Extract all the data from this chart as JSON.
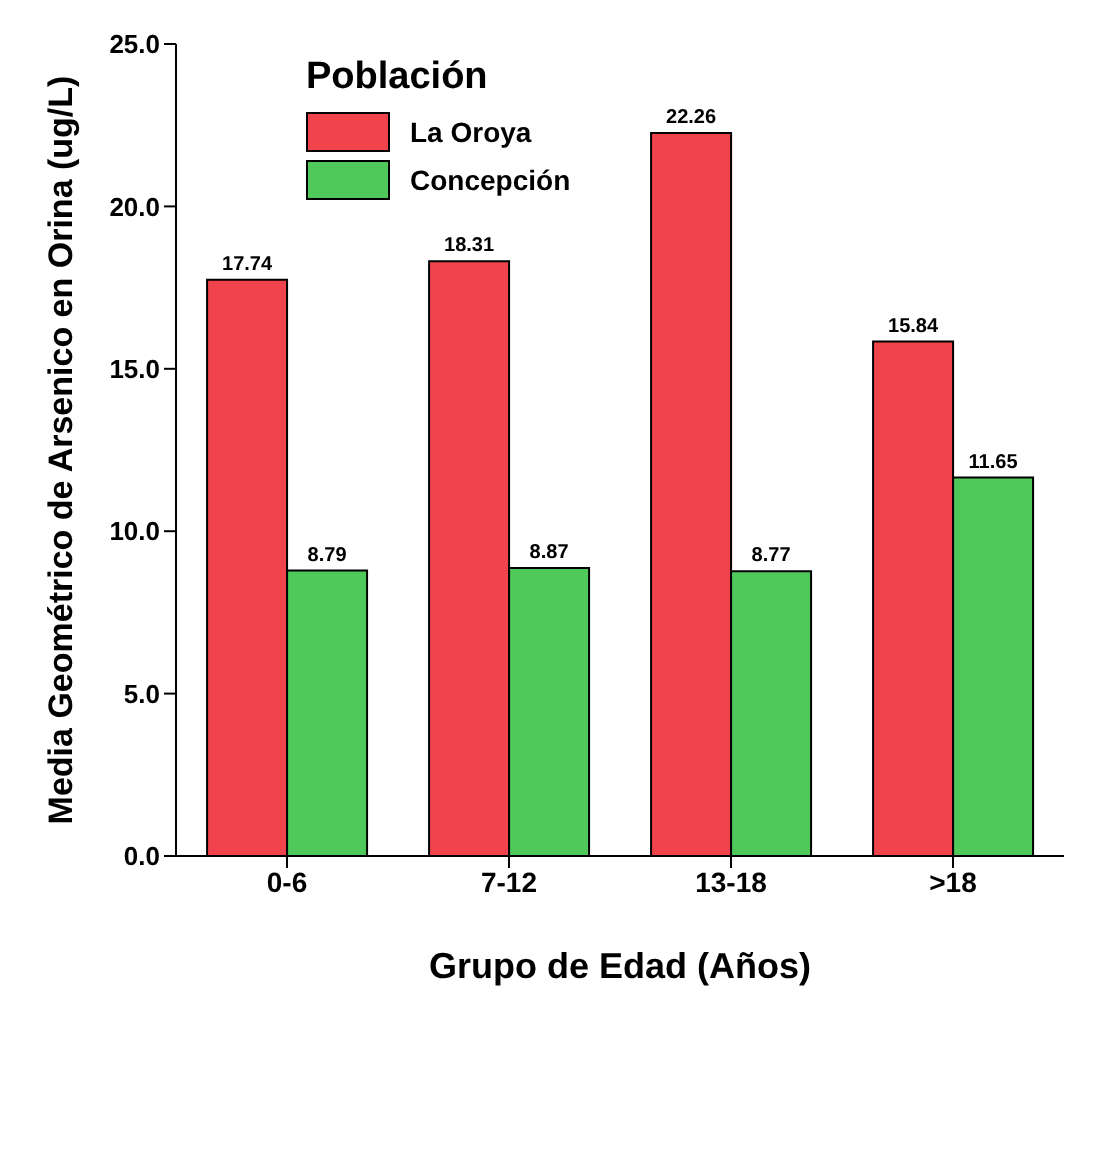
{
  "chart_data": {
    "type": "bar",
    "xlabel": "Grupo de Edad (Años)",
    "ylabel": "Media Geométrico de Arsenico en Orina (ug/L)",
    "legend_title": "Población",
    "categories": [
      "0-6",
      "7-12",
      "13-18",
      ">18"
    ],
    "series": [
      {
        "name": "La Oroya",
        "color": "#f0434b",
        "values": [
          17.74,
          18.31,
          22.26,
          15.84
        ]
      },
      {
        "name": "Concepción",
        "color": "#4ec95a",
        "values": [
          8.79,
          8.87,
          8.77,
          11.65
        ]
      }
    ],
    "ylim": [
      0,
      25
    ],
    "yticks": [
      {
        "value": 0,
        "label": "0.0"
      },
      {
        "value": 5,
        "label": "5.0"
      },
      {
        "value": 10,
        "label": "10.0"
      },
      {
        "value": 15,
        "label": "15.0"
      },
      {
        "value": 20,
        "label": "20.0"
      },
      {
        "value": 25,
        "label": "25.0"
      }
    ],
    "grid": false,
    "legend": "top left",
    "data_labels": true
  }
}
